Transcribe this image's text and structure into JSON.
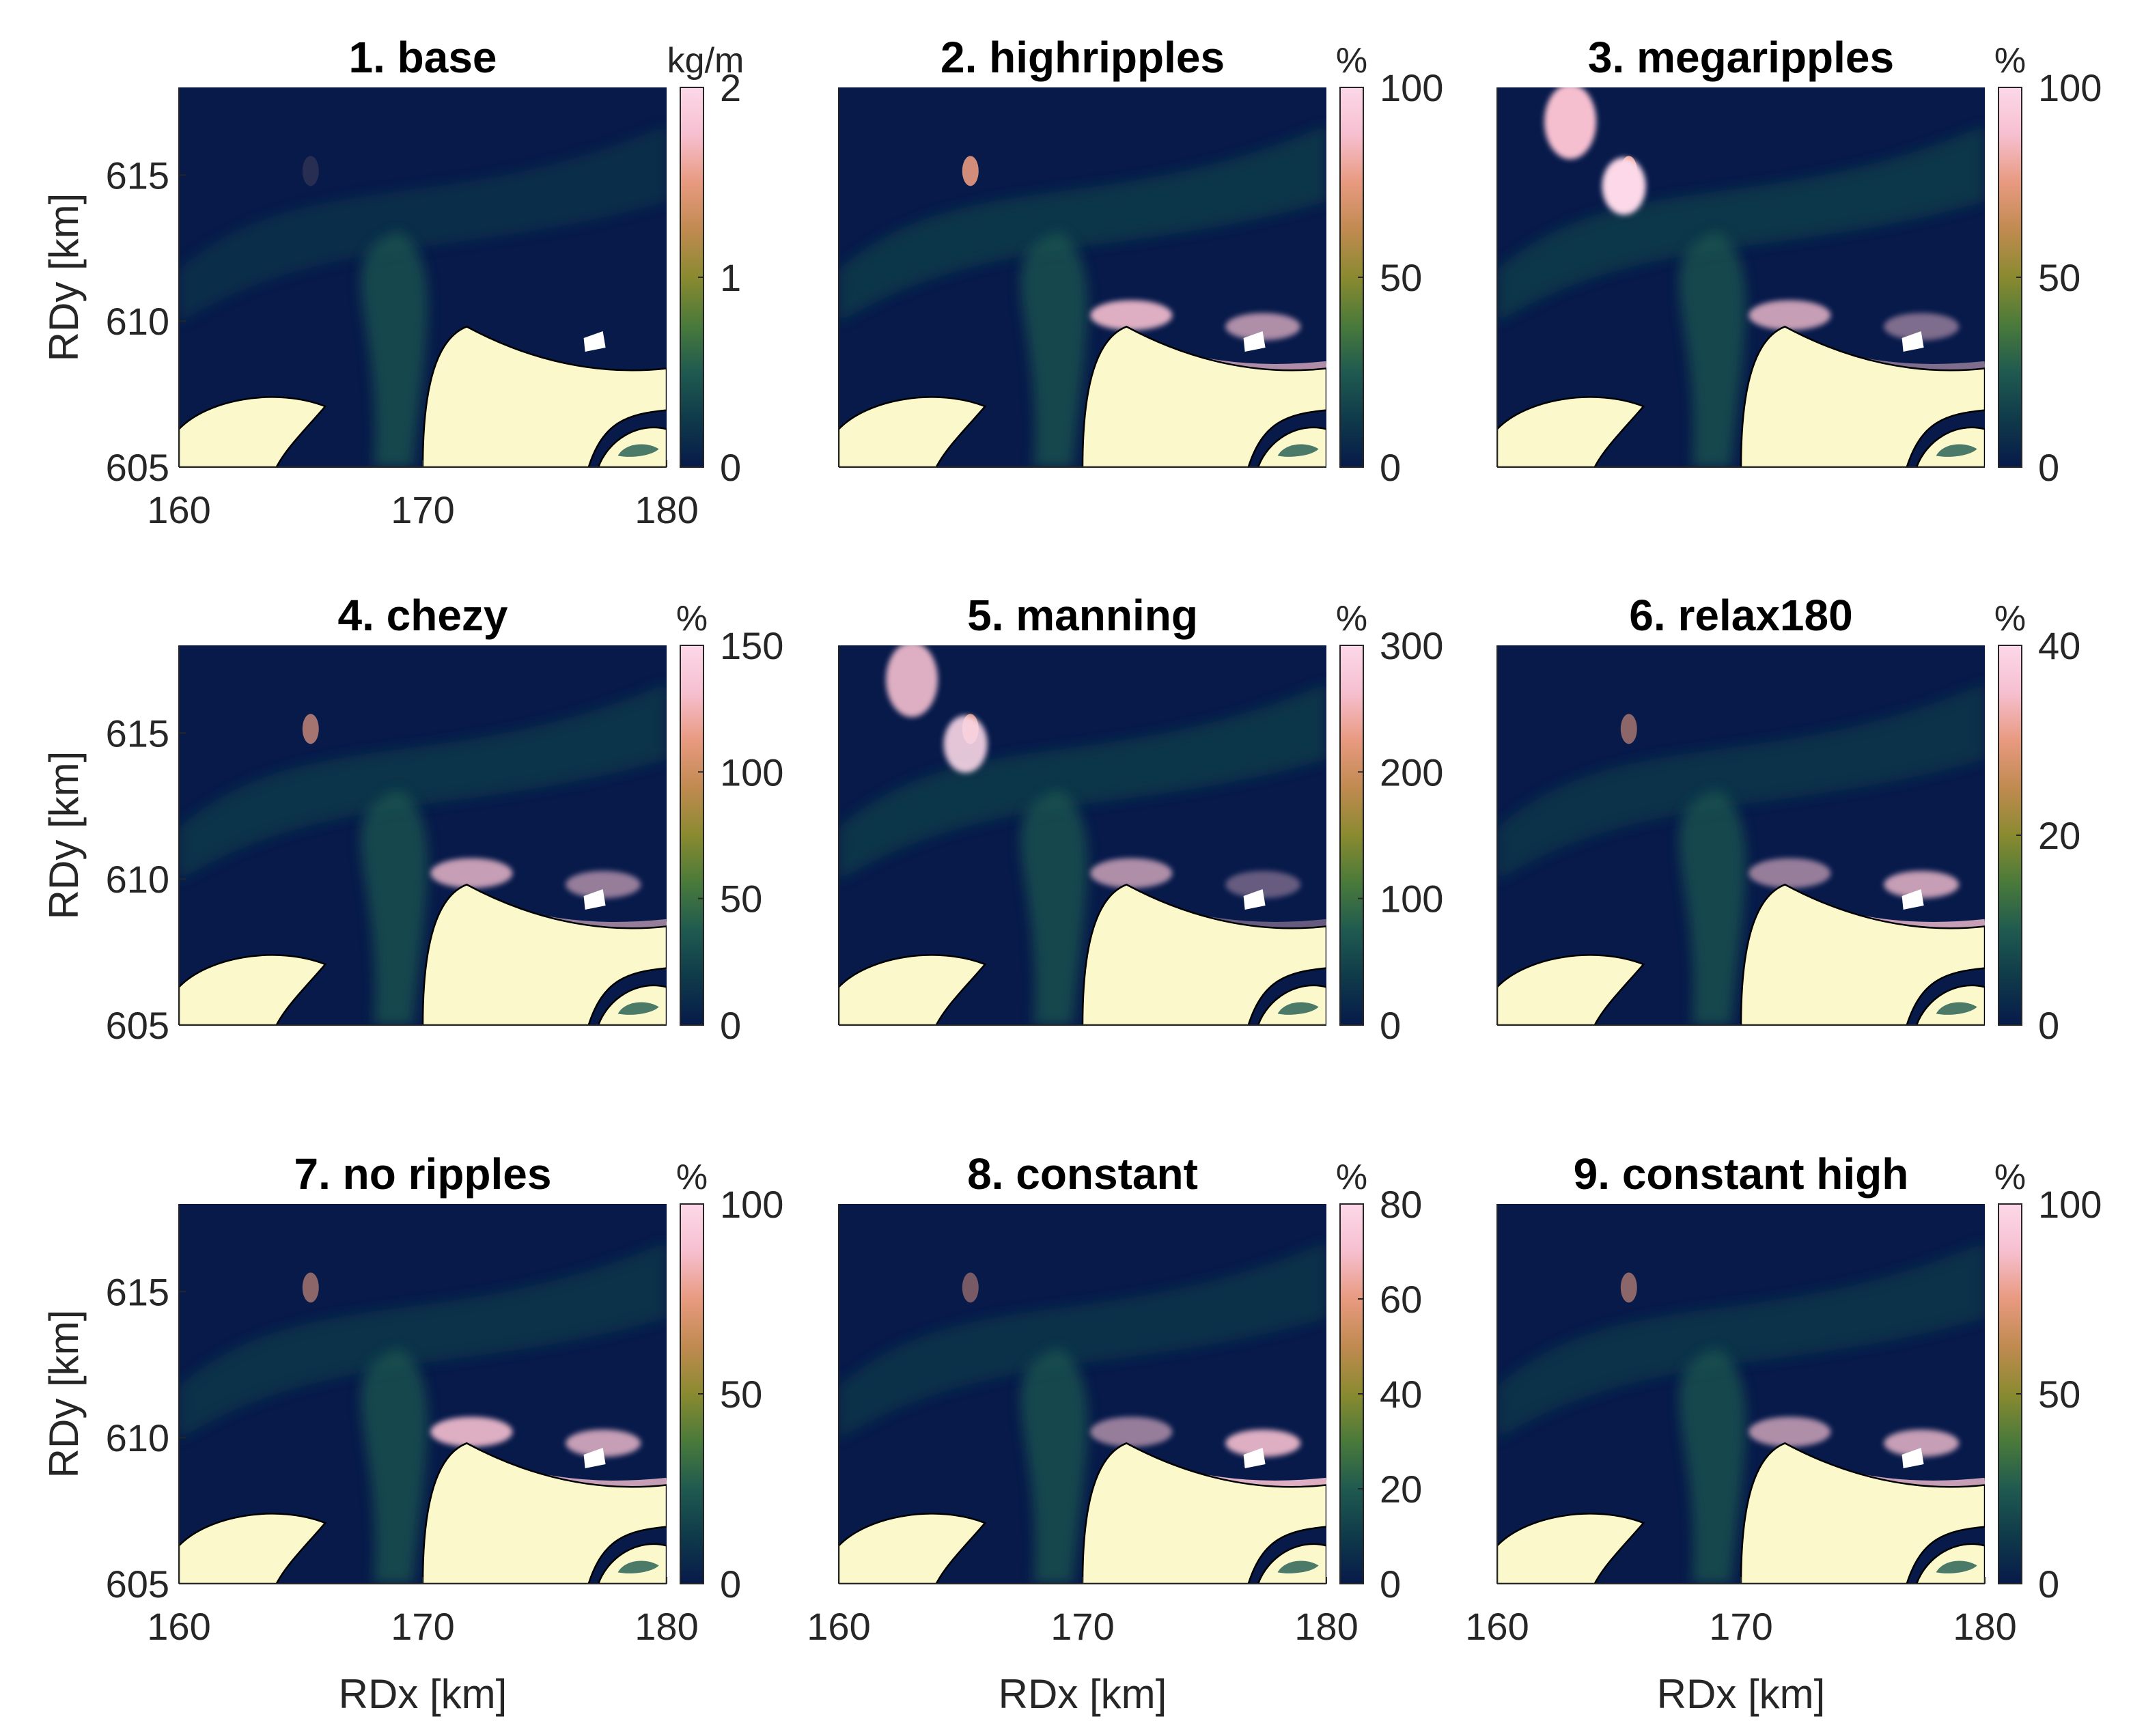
{
  "colormap": [
    "#071a4a",
    "#0f3a4a",
    "#1f5a50",
    "#4a7a3a",
    "#8a8a30",
    "#c08a50",
    "#e89a80",
    "#f6bfd0",
    "#fcd8e8"
  ],
  "colors": {
    "land": "#fbf9cc",
    "coast": "#000000",
    "no_data": "#ffffff"
  },
  "chart_data": [
    {
      "type": "heatmap",
      "title": "1. base",
      "colorbar_unit": "kg/m",
      "clim": [
        0,
        2
      ],
      "colorbar_ticks": [
        0,
        1,
        2
      ],
      "xlim": [
        160,
        180
      ],
      "ylim": [
        605,
        618
      ],
      "xticks": [
        160,
        170,
        180
      ],
      "yticks": [
        605,
        610,
        615
      ],
      "xlabel": "",
      "ylabel": "RDy [km]"
    },
    {
      "type": "heatmap",
      "title": "2. highripples",
      "colorbar_unit": "%",
      "clim": [
        0,
        100
      ],
      "colorbar_ticks": [
        0,
        50,
        100
      ],
      "xlim": [
        160,
        180
      ],
      "ylim": [
        605,
        618
      ],
      "xticks": [],
      "yticks": [],
      "xlabel": "",
      "ylabel": ""
    },
    {
      "type": "heatmap",
      "title": "3. megaripples",
      "colorbar_unit": "%",
      "clim": [
        0,
        100
      ],
      "colorbar_ticks": [
        0,
        50,
        100
      ],
      "xlim": [
        160,
        180
      ],
      "ylim": [
        605,
        618
      ],
      "xticks": [],
      "yticks": [],
      "xlabel": "",
      "ylabel": ""
    },
    {
      "type": "heatmap",
      "title": "4. chezy",
      "colorbar_unit": "%",
      "clim": [
        0,
        150
      ],
      "colorbar_ticks": [
        0,
        50,
        100,
        150
      ],
      "xlim": [
        160,
        180
      ],
      "ylim": [
        605,
        618
      ],
      "xticks": [],
      "yticks": [
        605,
        610,
        615
      ],
      "xlabel": "",
      "ylabel": "RDy [km]"
    },
    {
      "type": "heatmap",
      "title": "5. manning",
      "colorbar_unit": "%",
      "clim": [
        0,
        300
      ],
      "colorbar_ticks": [
        0,
        100,
        200,
        300
      ],
      "xlim": [
        160,
        180
      ],
      "ylim": [
        605,
        618
      ],
      "xticks": [],
      "yticks": [],
      "xlabel": "",
      "ylabel": ""
    },
    {
      "type": "heatmap",
      "title": "6. relax180",
      "colorbar_unit": "%",
      "clim": [
        0,
        40
      ],
      "colorbar_ticks": [
        0,
        20,
        40
      ],
      "xlim": [
        160,
        180
      ],
      "ylim": [
        605,
        618
      ],
      "xticks": [],
      "yticks": [],
      "xlabel": "",
      "ylabel": ""
    },
    {
      "type": "heatmap",
      "title": "7. no ripples",
      "colorbar_unit": "%",
      "clim": [
        0,
        100
      ],
      "colorbar_ticks": [
        0,
        50,
        100
      ],
      "xlim": [
        160,
        180
      ],
      "ylim": [
        605,
        618
      ],
      "xticks": [
        160,
        170,
        180
      ],
      "yticks": [
        605,
        610,
        615
      ],
      "xlabel": "RDx [km]",
      "ylabel": "RDy [km]"
    },
    {
      "type": "heatmap",
      "title": "8. constant",
      "colorbar_unit": "%",
      "clim": [
        0,
        80
      ],
      "colorbar_ticks": [
        0,
        20,
        40,
        60,
        80
      ],
      "xlim": [
        160,
        180
      ],
      "ylim": [
        605,
        618
      ],
      "xticks": [
        160,
        170,
        180
      ],
      "yticks": [],
      "xlabel": "RDx [km]",
      "ylabel": ""
    },
    {
      "type": "heatmap",
      "title": "9. constant high",
      "colorbar_unit": "%",
      "clim": [
        0,
        100
      ],
      "colorbar_ticks": [
        0,
        50,
        100
      ],
      "xlim": [
        160,
        180
      ],
      "ylim": [
        605,
        618
      ],
      "xticks": [
        160,
        170,
        180
      ],
      "yticks": [],
      "xlabel": "RDx [km]",
      "ylabel": ""
    }
  ]
}
